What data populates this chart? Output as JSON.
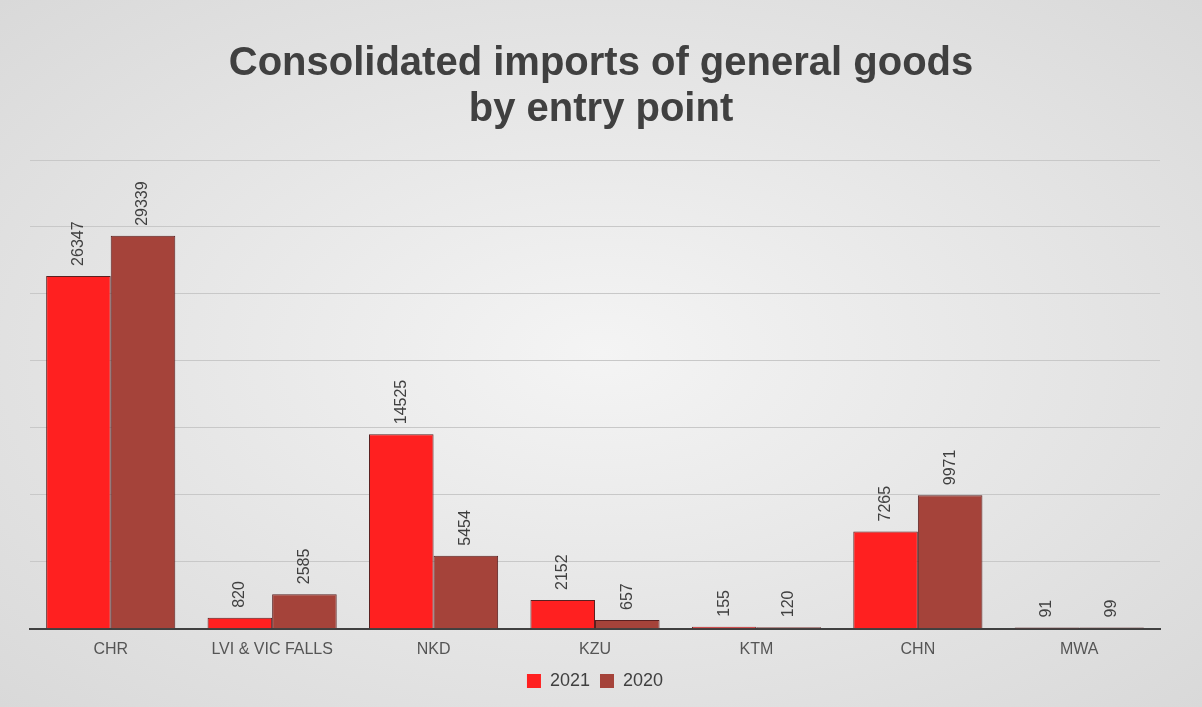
{
  "chart_data": {
    "type": "bar",
    "title": "Consolidated imports of general goods by entry point",
    "categories": [
      "CHR",
      "LVI & VIC FALLS",
      "NKD",
      "KZU",
      "KTM",
      "CHN",
      "MWA"
    ],
    "series": [
      {
        "name": "2021",
        "color": "#ff2020",
        "values": [
          26347,
          820,
          14525,
          2152,
          155,
          7265,
          91
        ]
      },
      {
        "name": "2020",
        "color": "#a5433a",
        "values": [
          29339,
          2585,
          5454,
          657,
          120,
          9971,
          99
        ]
      }
    ],
    "ylim": [
      0,
      35000
    ],
    "yticks": [
      {
        "value": 0,
        "label": null
      },
      {
        "value": 5000,
        "label": null
      },
      {
        "value": 10000,
        "label": null
      },
      {
        "value": 15000,
        "label": null
      },
      {
        "value": 20000,
        "label": null
      },
      {
        "value": 25000,
        "label": null
      },
      {
        "value": 30000,
        "label": null
      },
      {
        "value": 35000,
        "label": null
      }
    ],
    "tick_labels": "x",
    "grid": "y",
    "legend": "bottom",
    "data_labels": true
  }
}
